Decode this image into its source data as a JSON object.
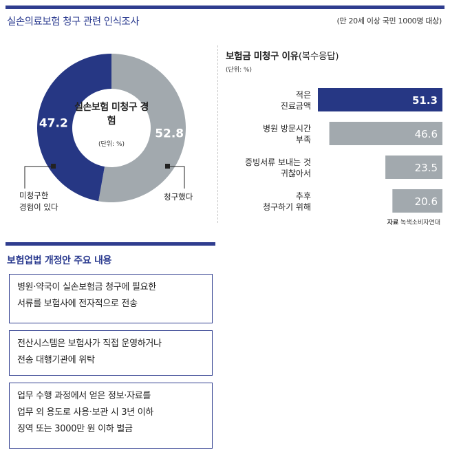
{
  "header": {
    "title": "실손의료보험 청구 관련 인식조사",
    "survey_note": "(만 20세 이상 국민 1000명 대상)"
  },
  "chart_data": [
    {
      "type": "pie",
      "title": "실손보험 미청구 경험",
      "unit": "(단위: %)",
      "slices": [
        {
          "label": "청구했다",
          "value": 52.8,
          "color": "#a2a9ae"
        },
        {
          "label": "미청구한 경험이 있다",
          "value": 47.2,
          "color": "#263784"
        }
      ],
      "callouts": {
        "left_line1": "미청구한",
        "left_line2": "경험이 있다",
        "right": "청구했다"
      }
    },
    {
      "type": "bar",
      "orientation": "horizontal",
      "title": "보험금 미청구 이유",
      "title_suffix": "(복수응답)",
      "unit": "(단위: %)",
      "categories": [
        [
          "적은",
          "진료금액"
        ],
        [
          "병원 방문시간",
          "부족"
        ],
        [
          "증빙서류 보내는 것",
          "귀찮아서"
        ],
        [
          "추후",
          "청구하기 위해"
        ]
      ],
      "values": [
        51.3,
        46.6,
        23.5,
        20.6
      ],
      "colors": [
        "#263784",
        "#a2a9ae",
        "#a2a9ae",
        "#a2a9ae"
      ],
      "source_label": "자료",
      "source": "녹색소비자연대"
    }
  ],
  "section2": {
    "title": "보험업법 개정안 주요 내용",
    "items": [
      "병원·약국이 실손보험금 청구에 필요한\n서류를 보험사에 전자적으로 전송",
      "전산시스템은 보험사가 직접 운영하거나\n전송 대행기관에 위탁",
      "업무 수행 과정에서 얻은 정보·자료를\n업무 외 용도로 사용·보관 시 3년 이하\n징역 또는 3000만 원 이하 벌금"
    ]
  }
}
